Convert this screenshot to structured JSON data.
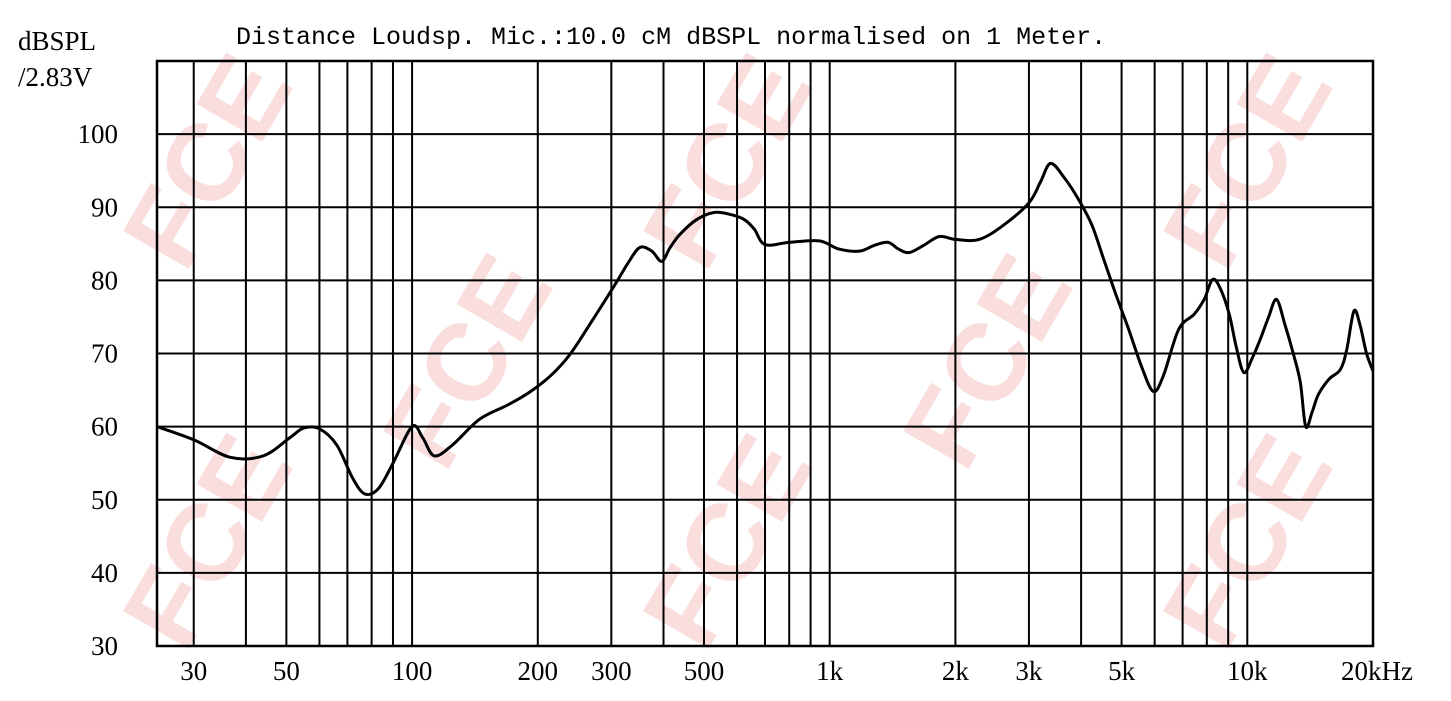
{
  "watermark": "FCE",
  "chart_data": {
    "type": "line",
    "title": "Distance Loudsp. Mic.:10.0 cM dBSPL normalised on 1 Meter.",
    "ylabel": [
      "dBSPL",
      "/2.83V"
    ],
    "xlabel": "Hz",
    "xscale": "log",
    "xlim": [
      24.5,
      20000
    ],
    "ylim": [
      30,
      110
    ],
    "grid": true,
    "y_ticks": [
      30,
      40,
      50,
      60,
      70,
      80,
      90,
      100
    ],
    "y_tick_labels": [
      "30",
      "40",
      "50",
      "60",
      "70",
      "80",
      "90",
      "100"
    ],
    "x_gridlines": [
      30,
      40,
      50,
      60,
      70,
      80,
      90,
      100,
      200,
      300,
      400,
      500,
      600,
      700,
      800,
      900,
      1000,
      2000,
      3000,
      4000,
      5000,
      6000,
      7000,
      8000,
      9000,
      10000,
      20000
    ],
    "x_ticks": [
      30,
      50,
      100,
      200,
      300,
      500,
      1000,
      2000,
      3000,
      5000,
      10000,
      20000
    ],
    "x_tick_labels": [
      "30",
      "50",
      "100",
      "200",
      "300",
      "500",
      "1k",
      "2k",
      "3k",
      "5k",
      "10k",
      "20kHz"
    ],
    "series": [
      {
        "name": "SPL",
        "color": "#000000",
        "x": [
          24.5,
          30,
          36.7,
          44,
          51,
          55,
          60,
          66,
          72,
          77,
          83,
          90,
          100,
          106,
          113,
          125,
          145,
          170,
          191,
          215,
          239,
          270,
          306,
          330,
          351,
          375,
          396,
          415,
          438,
          480,
          530,
          580,
          625,
          660,
          700,
          800,
          945,
          1050,
          1180,
          1280,
          1380,
          1460,
          1550,
          1680,
          1830,
          2000,
          2280,
          2600,
          3000,
          3200,
          3380,
          3650,
          3950,
          4250,
          4530,
          4850,
          5200,
          5600,
          5960,
          6300,
          6850,
          7470,
          7900,
          8250,
          8600,
          9050,
          9400,
          9810,
          10300,
          10750,
          11250,
          11750,
          12300,
          12900,
          13400,
          13800,
          14300,
          14800,
          15700,
          16700,
          17300,
          18000,
          18600,
          19300,
          20000
        ],
        "y": [
          60,
          58.2,
          55.8,
          56,
          58.5,
          59.8,
          59.7,
          57.5,
          53,
          50.8,
          51.5,
          55,
          60,
          58.5,
          56,
          57.5,
          61,
          63,
          64.7,
          67,
          69.9,
          74.5,
          79.4,
          82.5,
          84.5,
          84,
          82.6,
          84.5,
          86.3,
          88.3,
          89.3,
          89,
          88.3,
          87,
          84.9,
          85.2,
          85.4,
          84.3,
          84,
          84.8,
          85.2,
          84.3,
          83.8,
          84.8,
          86,
          85.6,
          85.6,
          87.5,
          90.6,
          93.5,
          96,
          94,
          91,
          87.5,
          82.9,
          78,
          73.3,
          68,
          64.8,
          67,
          73.3,
          75.4,
          77.5,
          80.1,
          79,
          75.4,
          71,
          67.4,
          69.5,
          72,
          75,
          77.4,
          74,
          69.9,
          66,
          60,
          62,
          64.4,
          66.5,
          67.8,
          70.5,
          75.8,
          74,
          70,
          67.6
        ]
      }
    ]
  }
}
